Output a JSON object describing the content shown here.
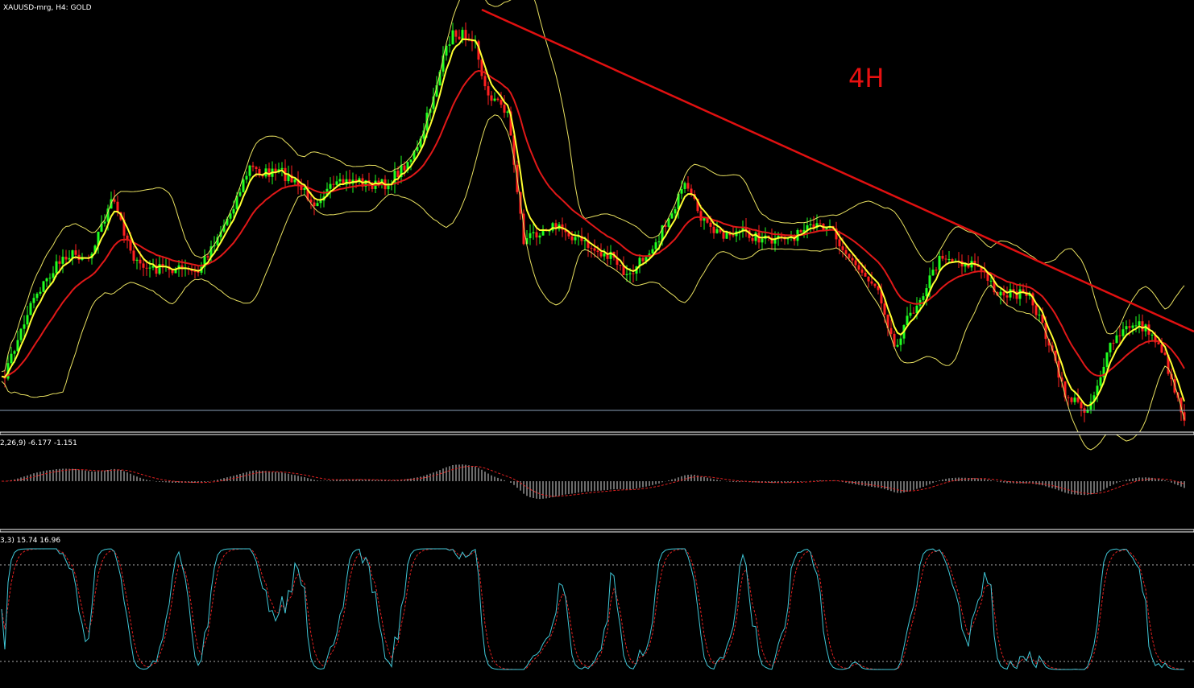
{
  "header": {
    "symbol": "XAUUSD-mrg, H4:  GOLD"
  },
  "annotation": "4H",
  "macd_label": "2,26,9) -6.177 -1.151",
  "stochastic_label": "3,3) 15.74 16.96"
}
